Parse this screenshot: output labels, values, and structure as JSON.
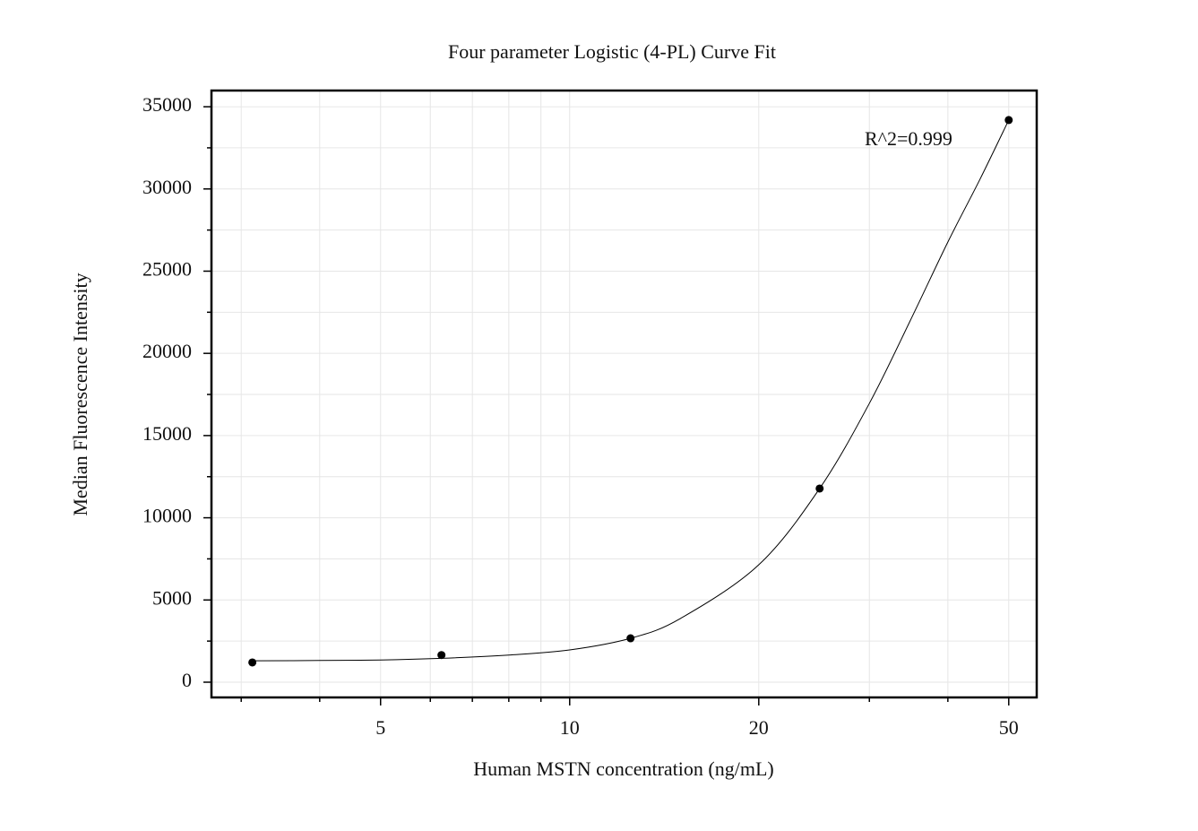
{
  "chart_data": {
    "type": "scatter",
    "title": "Four parameter Logistic (4-PL) Curve Fit",
    "x_label": "Human MSTN concentration (ng/mL)",
    "y_label": "Median Fluorescence Intensity",
    "annotation": "R^2=0.999",
    "x_scale": "log",
    "grid": true,
    "color": "#000000",
    "points": {
      "x": [
        3.125,
        6.25,
        12.5,
        25,
        50
      ],
      "values": [
        1200,
        1650,
        2670,
        11780,
        34190
      ]
    },
    "fit": {
      "x": [
        3.125,
        4,
        5,
        6.25,
        8,
        10,
        12.5,
        15,
        20,
        25,
        30,
        35,
        40,
        45,
        50
      ],
      "values": [
        1300,
        1320,
        1350,
        1450,
        1650,
        1960,
        2670,
        3870,
        7140,
        11780,
        16960,
        22140,
        26770,
        30590,
        34190
      ]
    },
    "xlim": [
      2.69,
      55.4
    ],
    "ylim": [
      -927,
      35985
    ],
    "xticks": [
      5,
      10,
      20,
      50
    ],
    "xminorticks": [
      3,
      4,
      6,
      7,
      8,
      9,
      30,
      40
    ],
    "yticks": [
      0,
      5000,
      10000,
      15000,
      20000,
      25000,
      30000,
      35000
    ],
    "yminorticks": [
      2500,
      7500,
      12500,
      17500,
      22500,
      27500,
      32500
    ]
  }
}
